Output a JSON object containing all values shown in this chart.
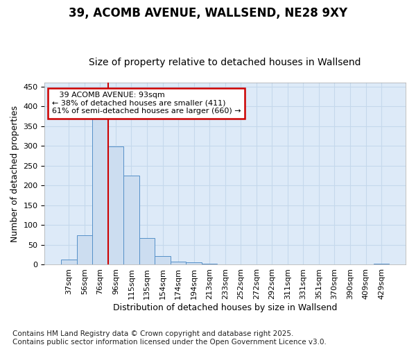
{
  "title1": "39, ACOMB AVENUE, WALLSEND, NE28 9XY",
  "title2": "Size of property relative to detached houses in Wallsend",
  "xlabel": "Distribution of detached houses by size in Wallsend",
  "ylabel": "Number of detached properties",
  "categories": [
    "37sqm",
    "56sqm",
    "76sqm",
    "96sqm",
    "115sqm",
    "135sqm",
    "154sqm",
    "174sqm",
    "194sqm",
    "213sqm",
    "233sqm",
    "252sqm",
    "272sqm",
    "292sqm",
    "311sqm",
    "331sqm",
    "351sqm",
    "370sqm",
    "390sqm",
    "409sqm",
    "429sqm"
  ],
  "values": [
    13,
    75,
    375,
    298,
    225,
    68,
    21,
    7,
    6,
    3,
    1,
    0,
    0,
    0,
    1,
    0,
    0,
    0,
    0,
    0,
    3
  ],
  "bar_color": "#ccddf0",
  "bar_edge_color": "#5590c8",
  "bar_linewidth": 0.7,
  "marker_label": "39 ACOMB AVENUE: 93sqm",
  "pct_smaller": "38% of detached houses are smaller (411)",
  "pct_larger": "61% of semi-detached houses are larger (660)",
  "annotation_box_facecolor": "#ffffff",
  "annotation_box_edge": "#cc0000",
  "vline_color": "#cc0000",
  "vline_x": 2.5,
  "grid_color": "#c5d8ec",
  "background_color": "#ddeaf8",
  "fig_facecolor": "#ffffff",
  "ylim": [
    0,
    460
  ],
  "yticks": [
    0,
    50,
    100,
    150,
    200,
    250,
    300,
    350,
    400,
    450
  ],
  "footer": "Contains HM Land Registry data © Crown copyright and database right 2025.\nContains public sector information licensed under the Open Government Licence v3.0.",
  "title_fontsize": 12,
  "subtitle_fontsize": 10,
  "axis_label_fontsize": 9,
  "tick_fontsize": 8,
  "footer_fontsize": 7.5
}
